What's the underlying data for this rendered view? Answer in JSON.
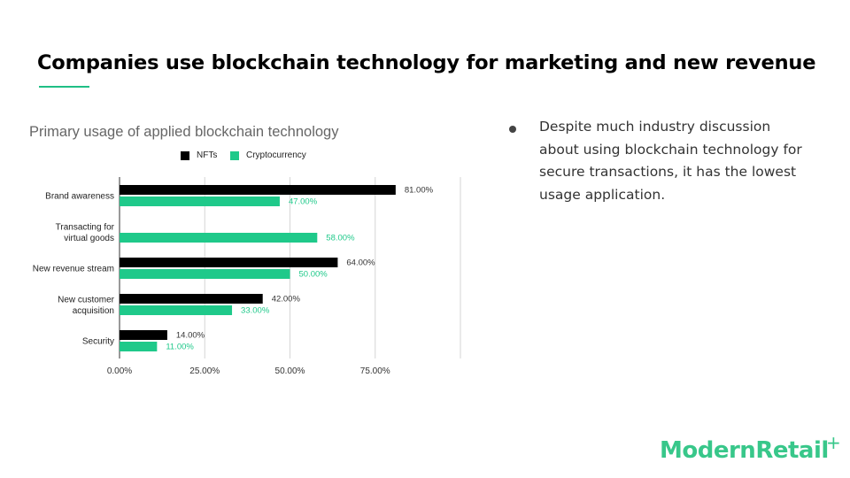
{
  "slide": {
    "title": "Companies use blockchain technology for marketing and new revenue",
    "accent_color": "#1fbf85",
    "bullets": [
      "Despite much industry discussion about using blockchain technology for secure transactions, it has the lowest usage application."
    ]
  },
  "logo": {
    "text": "ModernRetail",
    "mark": "+",
    "color": "#38c78a"
  },
  "chart_data": {
    "type": "bar",
    "orientation": "horizontal",
    "title": "Primary usage of applied blockchain technology",
    "categories": [
      "Brand awareness",
      "Transacting for virtual goods",
      "New revenue stream",
      "New customer acquisition",
      "Security"
    ],
    "category_lines": [
      [
        "Brand awareness"
      ],
      [
        "Transacting for",
        "virtual goods"
      ],
      [
        "New revenue stream"
      ],
      [
        "New customer",
        "acquisition"
      ],
      [
        "Security"
      ]
    ],
    "series": [
      {
        "name": "NFTs",
        "color": "#000000",
        "label_color": "#333333",
        "values": [
          81,
          null,
          64,
          42,
          14
        ],
        "labels": [
          "81.00%",
          "",
          "64.00%",
          "42.00%",
          "14.00%"
        ]
      },
      {
        "name": "Cryptocurrency",
        "color": "#1fc98a",
        "label_color": "#1fc98a",
        "values": [
          47,
          58,
          50,
          33,
          11
        ],
        "labels": [
          "47.00%",
          "58.00%",
          "50.00%",
          "33.00%",
          "11.00%"
        ]
      }
    ],
    "xlim": [
      0,
      100
    ],
    "xticks": [
      0,
      25,
      50,
      75,
      100
    ],
    "xtick_labels": [
      "0.00%",
      "25.00%",
      "50.00%",
      "75.00%",
      ""
    ],
    "grid": true,
    "legend_position": "top"
  }
}
